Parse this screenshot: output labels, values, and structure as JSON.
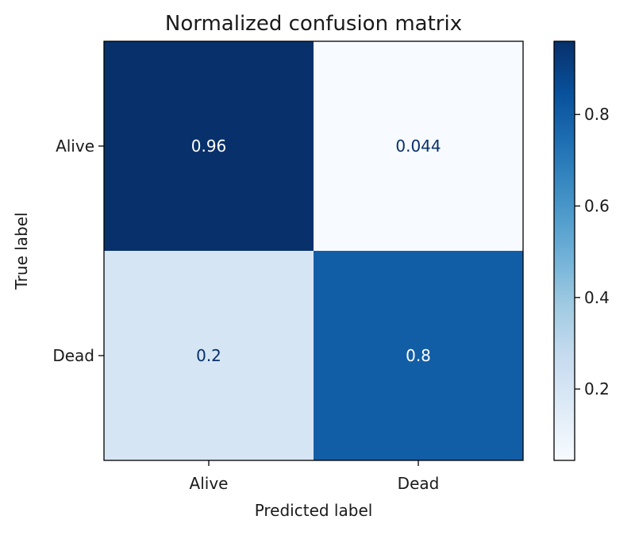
{
  "chart_data": {
    "type": "heatmap",
    "title": "Normalized confusion matrix",
    "xlabel": "Predicted label",
    "ylabel": "True label",
    "x_categories": [
      "Alive",
      "Dead"
    ],
    "y_categories": [
      "Alive",
      "Dead"
    ],
    "values": [
      [
        0.96,
        0.044
      ],
      [
        0.2,
        0.8
      ]
    ],
    "cell_labels": [
      [
        "0.96",
        "0.044"
      ],
      [
        "0.2",
        "0.8"
      ]
    ],
    "colormap": "Blues",
    "colorbar": {
      "range": [
        0.044,
        0.96
      ],
      "ticks": [
        0.2,
        0.4,
        0.6,
        0.8
      ],
      "tick_labels": [
        "0.2",
        "0.4",
        "0.6",
        "0.8"
      ]
    },
    "grid": false
  }
}
